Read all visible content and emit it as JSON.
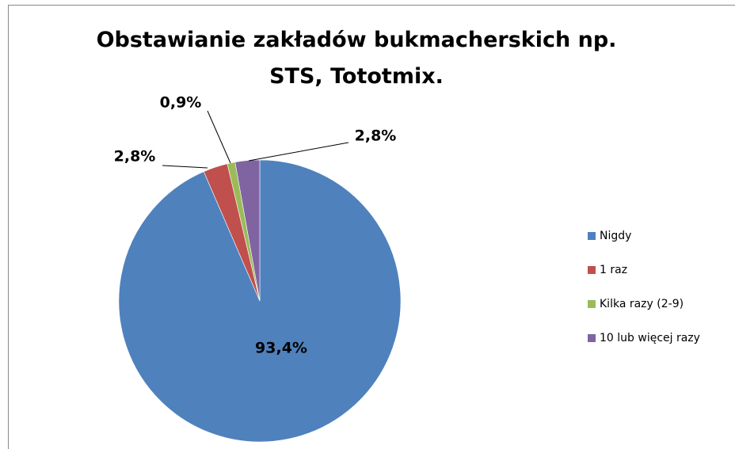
{
  "chart_data": {
    "type": "pie",
    "title": "Obstawianie zakładów bukmacherskich np. STS, Tototmix.",
    "categories": [
      "Nigdy",
      "1 raz",
      "Kilka razy (2-9)",
      "10 lub więcej razy"
    ],
    "values": [
      93.4,
      2.8,
      0.9,
      2.8
    ],
    "value_labels": [
      "93,4%",
      "2,8%",
      "0,9%",
      "2,8%"
    ],
    "colors": [
      "#4f81bd",
      "#c0504d",
      "#9bbb59",
      "#8064a2"
    ],
    "legend": "right"
  }
}
